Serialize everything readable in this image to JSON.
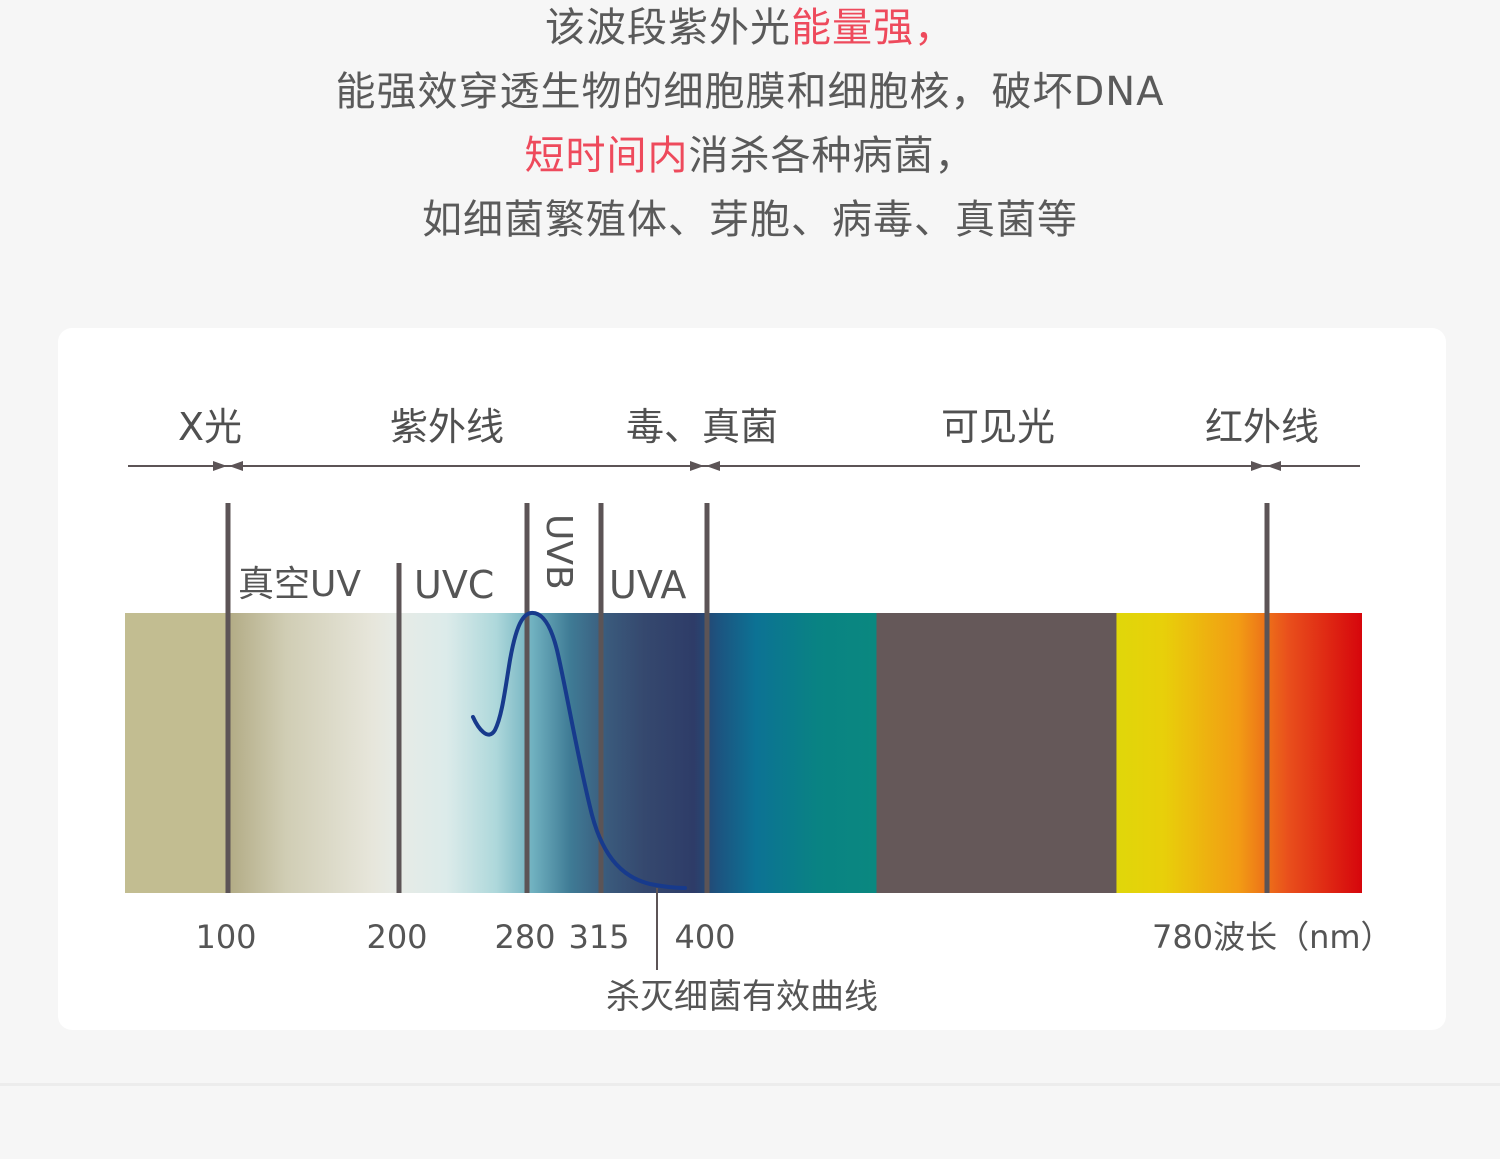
{
  "intro": {
    "line1": {
      "before": "该波段紫外光",
      "highlight": "能量强，",
      "after": ""
    },
    "line2": {
      "text": "能强效穿透生物的细胞膜和细胞核，破坏DNA"
    },
    "line3": {
      "before": "",
      "highlight": "短时间内",
      "after": "消杀各种病菌，"
    },
    "line4": {
      "text": "如细菌繁殖体、芽胞、病毒、真菌等"
    }
  },
  "diagram": {
    "categories": {
      "xray": "X光",
      "uv": "紫外线",
      "germ": "毒、真菌",
      "visible": "可见光",
      "ir": "红外线"
    },
    "bands": {
      "vacuum_uv": "真空UV",
      "uvc": "UVC",
      "uvb": "UVB",
      "uva": "UVA"
    },
    "ticks": [
      "100",
      "200",
      "280",
      "315",
      "400"
    ],
    "axis_end_label": "780波长（nm）",
    "curve_label": "杀灭细菌有效曲线"
  },
  "colors": {
    "highlight": "#ee4a5c",
    "curve": "#173a8c",
    "marker": "#5c5456",
    "visible_band": "#655859"
  }
}
